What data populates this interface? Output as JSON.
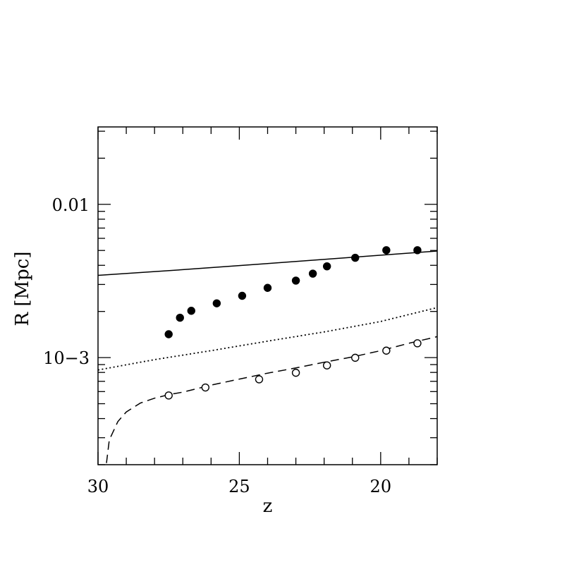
{
  "chart_data": {
    "type": "scatter",
    "xlabel": "z",
    "ylabel": "R [Mpc]",
    "x_axis": {
      "min": 30,
      "max": 18,
      "reversed": true,
      "tick_labels": [
        "30",
        "25",
        "20"
      ],
      "tick_values": [
        30,
        25,
        20
      ]
    },
    "y_axis": {
      "scale": "log",
      "min": 0.0002,
      "max": 0.032,
      "tick_labels": [
        "0.01",
        "10−3"
      ],
      "tick_values": [
        0.01,
        0.001
      ]
    },
    "grid": false,
    "series": [
      {
        "style": "filled-circles",
        "color": "#000000",
        "x": [
          27.5,
          27.1,
          26.7,
          25.8,
          24.9,
          24.0,
          23.0,
          22.4,
          21.9,
          20.9,
          19.8,
          18.7
        ],
        "y": [
          0.00142,
          0.00182,
          0.00202,
          0.00226,
          0.00253,
          0.00285,
          0.00318,
          0.00353,
          0.00394,
          0.00448,
          0.00502,
          0.00502
        ]
      },
      {
        "style": "open-circles",
        "color": "#000000",
        "x": [
          27.5,
          26.2,
          24.3,
          23.0,
          21.9,
          20.9,
          19.8,
          18.7
        ],
        "y": [
          0.000566,
          0.000638,
          0.000721,
          0.000796,
          0.000889,
          0.000997,
          0.00111,
          0.00124
        ]
      },
      {
        "style": "solid-line",
        "color": "#000000",
        "x": [
          30,
          27,
          24,
          21,
          18
        ],
        "y": [
          0.00344,
          0.00375,
          0.00411,
          0.00451,
          0.00496
        ]
      },
      {
        "style": "dotted-line",
        "color": "#000000",
        "x": [
          30,
          28,
          26,
          24,
          22,
          20,
          18
        ],
        "y": [
          0.00083,
          0.00097,
          0.00111,
          0.00128,
          0.00147,
          0.00172,
          0.00212
        ]
      },
      {
        "style": "dashed-line",
        "color": "#000000",
        "x": [
          29.7,
          29.6,
          29.3,
          29.0,
          28.5,
          28.0,
          27.5,
          27.0,
          26.0,
          25.0,
          24.0,
          23.0,
          22.0,
          21.0,
          20.0,
          19.0,
          18.0
        ],
        "y": [
          0.000205,
          0.00029,
          0.000382,
          0.000442,
          0.000505,
          0.000543,
          0.000573,
          0.000595,
          0.000661,
          0.000724,
          0.000791,
          0.000856,
          0.000932,
          0.00101,
          0.00111,
          0.00124,
          0.00137
        ]
      }
    ]
  }
}
